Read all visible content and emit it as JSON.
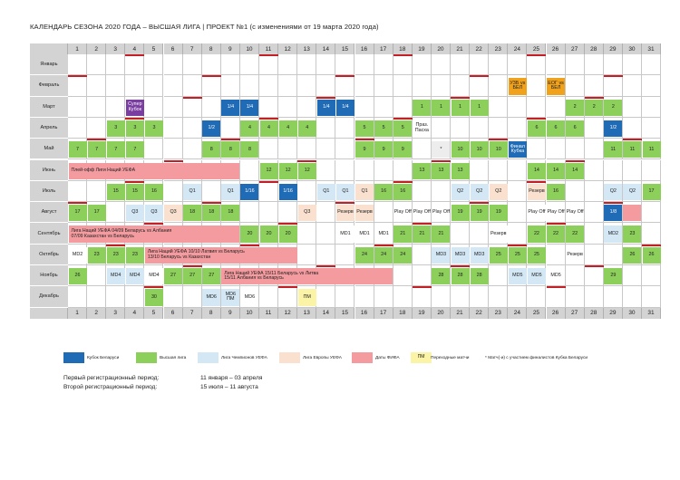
{
  "title": "КАЛЕНДАРЬ СЕЗОНА 2020 ГОДА – ВЫСШАЯ ЛИГА   | ПРОЕКТ №1 (с изменениями от 19 марта 2020 года)",
  "colors": {
    "green": "#8ccf5b",
    "blue": "#1f6bb5",
    "light_blue": "#d3e7f5",
    "peach": "#f9e0cf",
    "pink": "#f39b9f",
    "yellow": "#fbf3a6",
    "purple": "#7a3da0",
    "orange": "#f0a21d",
    "red": "#c41e26",
    "gray": "#d3d3d3"
  },
  "days": [
    "1",
    "2",
    "3",
    "4",
    "5",
    "6",
    "7",
    "8",
    "9",
    "10",
    "11",
    "12",
    "13",
    "14",
    "15",
    "16",
    "17",
    "18",
    "19",
    "20",
    "21",
    "22",
    "23",
    "24",
    "25",
    "26",
    "27",
    "28",
    "29",
    "30",
    "31"
  ],
  "months": [
    "Январь",
    "Февраль",
    "Март",
    "Апрель",
    "Май",
    "Июнь",
    "Июль",
    "Август",
    "Сентябрь",
    "Октябрь",
    "Ноябрь",
    "Декабрь"
  ],
  "red_marks": [
    [
      4,
      11,
      18,
      25
    ],
    [
      1,
      8,
      15,
      22,
      29
    ],
    [
      7,
      14,
      21,
      28
    ],
    [
      4,
      11,
      18,
      25
    ],
    [
      2,
      9,
      16,
      23,
      30
    ],
    [
      6,
      13,
      20,
      27
    ],
    [
      4,
      11,
      18,
      25
    ],
    [
      1,
      8,
      15,
      22,
      29
    ],
    [
      5,
      12,
      19,
      26
    ],
    [
      3,
      10,
      17,
      24,
      31
    ],
    [
      7,
      14,
      21,
      28
    ],
    [
      5,
      12,
      19,
      26
    ]
  ],
  "events": [
    {
      "m": 1,
      "d": 24,
      "c": "orange",
      "t": "УЗБ vs БЕЛ"
    },
    {
      "m": 1,
      "d": 26,
      "c": "orange",
      "t": "ЕОГ vs БЕЛ"
    },
    {
      "m": 2,
      "d": 4,
      "c": "purple",
      "t": "Супер Кубок"
    },
    {
      "m": 2,
      "d": 9,
      "c": "blue",
      "t": "1/4"
    },
    {
      "m": 2,
      "d": 10,
      "c": "blue",
      "t": "1/4"
    },
    {
      "m": 2,
      "d": 14,
      "c": "blue",
      "t": "1/4"
    },
    {
      "m": 2,
      "d": 15,
      "c": "blue",
      "t": "1/4"
    },
    {
      "m": 2,
      "d": 19,
      "c": "green",
      "t": "1"
    },
    {
      "m": 2,
      "d": 20,
      "c": "green",
      "t": "1"
    },
    {
      "m": 2,
      "d": 21,
      "c": "green",
      "t": "1"
    },
    {
      "m": 2,
      "d": 22,
      "c": "green",
      "t": "1"
    },
    {
      "m": 2,
      "d": 27,
      "c": "green",
      "t": "2"
    },
    {
      "m": 2,
      "d": 28,
      "c": "green",
      "t": "2"
    },
    {
      "m": 2,
      "d": 29,
      "c": "green",
      "t": "2"
    },
    {
      "m": 3,
      "d": 3,
      "c": "green",
      "t": "3"
    },
    {
      "m": 3,
      "d": 4,
      "c": "green",
      "t": "3"
    },
    {
      "m": 3,
      "d": 5,
      "c": "green",
      "t": "3"
    },
    {
      "m": 3,
      "d": 8,
      "c": "blue",
      "t": "1/2"
    },
    {
      "m": 3,
      "d": 10,
      "c": "green",
      "t": "4"
    },
    {
      "m": 3,
      "d": 11,
      "c": "green",
      "t": "4"
    },
    {
      "m": 3,
      "d": 12,
      "c": "green",
      "t": "4"
    },
    {
      "m": 3,
      "d": 13,
      "c": "green",
      "t": "4"
    },
    {
      "m": 3,
      "d": 16,
      "c": "green",
      "t": "5"
    },
    {
      "m": 3,
      "d": 17,
      "c": "green",
      "t": "5"
    },
    {
      "m": 3,
      "d": 18,
      "c": "green",
      "t": "5"
    },
    {
      "m": 3,
      "d": 19,
      "c": "white",
      "t": "Праз. Пасха"
    },
    {
      "m": 3,
      "d": 25,
      "c": "green",
      "t": "6"
    },
    {
      "m": 3,
      "d": 26,
      "c": "green",
      "t": "6"
    },
    {
      "m": 3,
      "d": 27,
      "c": "green",
      "t": "6"
    },
    {
      "m": 3,
      "d": 29,
      "c": "blue",
      "t": "1/2"
    },
    {
      "m": 4,
      "d": 1,
      "c": "green",
      "t": "7"
    },
    {
      "m": 4,
      "d": 2,
      "c": "green",
      "t": "7"
    },
    {
      "m": 4,
      "d": 3,
      "c": "green",
      "t": "7"
    },
    {
      "m": 4,
      "d": 4,
      "c": "green",
      "t": "7"
    },
    {
      "m": 4,
      "d": 8,
      "c": "green",
      "t": "8"
    },
    {
      "m": 4,
      "d": 9,
      "c": "green",
      "t": "8"
    },
    {
      "m": 4,
      "d": 10,
      "c": "green",
      "t": "8"
    },
    {
      "m": 4,
      "d": 16,
      "c": "green",
      "t": "9"
    },
    {
      "m": 4,
      "d": 17,
      "c": "green",
      "t": "9"
    },
    {
      "m": 4,
      "d": 18,
      "c": "green",
      "t": "9"
    },
    {
      "m": 4,
      "d": 20,
      "c": "gray",
      "t": "*"
    },
    {
      "m": 4,
      "d": 21,
      "c": "green",
      "t": "10"
    },
    {
      "m": 4,
      "d": 22,
      "c": "green",
      "t": "10"
    },
    {
      "m": 4,
      "d": 23,
      "c": "green",
      "t": "10"
    },
    {
      "m": 4,
      "d": 24,
      "c": "blue",
      "t": "Финал Кубка"
    },
    {
      "m": 4,
      "d": 29,
      "c": "green",
      "t": "11"
    },
    {
      "m": 4,
      "d": 30,
      "c": "green",
      "t": "11"
    },
    {
      "m": 4,
      "d": 31,
      "c": "green",
      "t": "11"
    },
    {
      "m": 5,
      "d": 1,
      "span": 9,
      "c": "pink",
      "t": "Плей-офф Лиги Наций УЕФА"
    },
    {
      "m": 5,
      "d": 11,
      "c": "green",
      "t": "12"
    },
    {
      "m": 5,
      "d": 12,
      "c": "green",
      "t": "12"
    },
    {
      "m": 5,
      "d": 13,
      "c": "green",
      "t": "12"
    },
    {
      "m": 5,
      "d": 19,
      "c": "green",
      "t": "13"
    },
    {
      "m": 5,
      "d": 20,
      "c": "green",
      "t": "13"
    },
    {
      "m": 5,
      "d": 21,
      "c": "green",
      "t": "13"
    },
    {
      "m": 5,
      "d": 25,
      "c": "green",
      "t": "14"
    },
    {
      "m": 5,
      "d": 26,
      "c": "green",
      "t": "14"
    },
    {
      "m": 5,
      "d": 27,
      "c": "green",
      "t": "14"
    },
    {
      "m": 6,
      "d": 3,
      "c": "green",
      "t": "15"
    },
    {
      "m": 6,
      "d": 4,
      "c": "green",
      "t": "15"
    },
    {
      "m": 6,
      "d": 5,
      "c": "green",
      "t": "16"
    },
    {
      "m": 6,
      "d": 7,
      "c": "lblue",
      "t": "Q1"
    },
    {
      "m": 6,
      "d": 9,
      "c": "lblue",
      "t": "Q1"
    },
    {
      "m": 6,
      "d": 10,
      "c": "blue",
      "t": "1/16"
    },
    {
      "m": 6,
      "d": 12,
      "c": "blue",
      "t": "1/16"
    },
    {
      "m": 6,
      "d": 14,
      "c": "lblue",
      "t": "Q1"
    },
    {
      "m": 6,
      "d": 15,
      "c": "lblue",
      "t": "Q1"
    },
    {
      "m": 6,
      "d": 16,
      "c": "peach",
      "t": "Q1"
    },
    {
      "m": 6,
      "d": 17,
      "c": "green",
      "t": "16"
    },
    {
      "m": 6,
      "d": 18,
      "c": "green",
      "t": "16"
    },
    {
      "m": 6,
      "d": 21,
      "c": "lblue",
      "t": "Q2"
    },
    {
      "m": 6,
      "d": 22,
      "c": "lblue",
      "t": "Q2"
    },
    {
      "m": 6,
      "d": 23,
      "c": "peach",
      "t": "Q2"
    },
    {
      "m": 6,
      "d": 25,
      "c": "peach",
      "t": "Резерв"
    },
    {
      "m": 6,
      "d": 26,
      "c": "green",
      "t": "16"
    },
    {
      "m": 6,
      "d": 29,
      "c": "lblue",
      "t": "Q2"
    },
    {
      "m": 6,
      "d": 30,
      "c": "lblue",
      "t": "Q2"
    },
    {
      "m": 6,
      "d": 31,
      "c": "green",
      "t": "17"
    },
    {
      "m": 7,
      "d": 1,
      "c": "green",
      "t": "17"
    },
    {
      "m": 7,
      "d": 2,
      "c": "green",
      "t": "17"
    },
    {
      "m": 7,
      "d": 4,
      "c": "lblue",
      "t": "Q3"
    },
    {
      "m": 7,
      "d": 5,
      "c": "lblue",
      "t": "Q3"
    },
    {
      "m": 7,
      "d": 6,
      "c": "peach",
      "t": "Q3"
    },
    {
      "m": 7,
      "d": 7,
      "c": "green",
      "t": "18"
    },
    {
      "m": 7,
      "d": 8,
      "c": "green",
      "t": "18"
    },
    {
      "m": 7,
      "d": 9,
      "c": "green",
      "t": "18"
    },
    {
      "m": 7,
      "d": 13,
      "c": "peach",
      "t": "Q3"
    },
    {
      "m": 7,
      "d": 15,
      "c": "peach",
      "t": "Резерв"
    },
    {
      "m": 7,
      "d": 16,
      "c": "peach",
      "t": "Резерв"
    },
    {
      "m": 7,
      "d": 18,
      "c": "white",
      "t": "Play Off"
    },
    {
      "m": 7,
      "d": 19,
      "c": "white",
      "t": "Play Off"
    },
    {
      "m": 7,
      "d": 20,
      "c": "white",
      "t": "Play Off"
    },
    {
      "m": 7,
      "d": 21,
      "c": "green",
      "t": "19"
    },
    {
      "m": 7,
      "d": 22,
      "c": "green",
      "t": "19"
    },
    {
      "m": 7,
      "d": 23,
      "c": "green",
      "t": "19"
    },
    {
      "m": 7,
      "d": 25,
      "c": "white",
      "t": "Play Off"
    },
    {
      "m": 7,
      "d": 26,
      "c": "white",
      "t": "Play Off"
    },
    {
      "m": 7,
      "d": 27,
      "c": "white",
      "t": "Play Off"
    },
    {
      "m": 7,
      "d": 29,
      "c": "blue",
      "t": "1/8"
    },
    {
      "m": 7,
      "d": 30,
      "c": "pink",
      "t": ""
    },
    {
      "m": 8,
      "d": 1,
      "span": 9,
      "c": "pink",
      "t": "Лига Наций УЕФА    04/09 Беларусь vs Албания\n07/09 Казахстан vs Беларусь"
    },
    {
      "m": 8,
      "d": 10,
      "c": "green",
      "t": "20"
    },
    {
      "m": 8,
      "d": 11,
      "c": "green",
      "t": "20"
    },
    {
      "m": 8,
      "d": 12,
      "c": "green",
      "t": "20"
    },
    {
      "m": 8,
      "d": 15,
      "c": "white",
      "t": "MD1"
    },
    {
      "m": 8,
      "d": 16,
      "c": "white",
      "t": "MD1"
    },
    {
      "m": 8,
      "d": 17,
      "c": "white",
      "t": "MD1"
    },
    {
      "m": 8,
      "d": 18,
      "c": "green",
      "t": "21"
    },
    {
      "m": 8,
      "d": 19,
      "c": "green",
      "t": "21"
    },
    {
      "m": 8,
      "d": 20,
      "c": "green",
      "t": "21"
    },
    {
      "m": 8,
      "d": 23,
      "c": "white",
      "t": "Резерв"
    },
    {
      "m": 8,
      "d": 25,
      "c": "green",
      "t": "22"
    },
    {
      "m": 8,
      "d": 26,
      "c": "green",
      "t": "22"
    },
    {
      "m": 8,
      "d": 27,
      "c": "green",
      "t": "22"
    },
    {
      "m": 8,
      "d": 29,
      "c": "lblue",
      "t": "MD2"
    },
    {
      "m": 8,
      "d": 30,
      "c": "green",
      "t": "23"
    },
    {
      "m": 9,
      "d": 1,
      "c": "white",
      "t": "MD2"
    },
    {
      "m": 9,
      "d": 2,
      "c": "green",
      "t": "23"
    },
    {
      "m": 9,
      "d": 3,
      "c": "green",
      "t": "23"
    },
    {
      "m": 9,
      "d": 4,
      "c": "green",
      "t": "23"
    },
    {
      "m": 9,
      "d": 5,
      "span": 8,
      "c": "pink",
      "t": "Лига Наций УЕФА    10/10 Латвия vs Беларусь\n13/10 Беларусь vs Казахстан"
    },
    {
      "m": 9,
      "d": 16,
      "c": "green",
      "t": "24"
    },
    {
      "m": 9,
      "d": 17,
      "c": "green",
      "t": "24"
    },
    {
      "m": 9,
      "d": 18,
      "c": "green",
      "t": "24"
    },
    {
      "m": 9,
      "d": 20,
      "c": "lblue",
      "t": "MD3"
    },
    {
      "m": 9,
      "d": 21,
      "c": "lblue",
      "t": "MD3"
    },
    {
      "m": 9,
      "d": 22,
      "c": "lblue",
      "t": "MD3"
    },
    {
      "m": 9,
      "d": 23,
      "c": "green",
      "t": "25"
    },
    {
      "m": 9,
      "d": 24,
      "c": "green",
      "t": "25"
    },
    {
      "m": 9,
      "d": 25,
      "c": "green",
      "t": "25"
    },
    {
      "m": 9,
      "d": 27,
      "c": "white",
      "t": "Резерв"
    },
    {
      "m": 9,
      "d": 30,
      "c": "green",
      "t": "26"
    },
    {
      "m": 9,
      "d": 31,
      "c": "green",
      "t": "26"
    },
    {
      "m": 10,
      "d": 1,
      "c": "green",
      "t": "26"
    },
    {
      "m": 10,
      "d": 3,
      "c": "lblue",
      "t": "MD4"
    },
    {
      "m": 10,
      "d": 4,
      "c": "lblue",
      "t": "MD4"
    },
    {
      "m": 10,
      "d": 5,
      "c": "white",
      "t": "MD4"
    },
    {
      "m": 10,
      "d": 6,
      "c": "green",
      "t": "27"
    },
    {
      "m": 10,
      "d": 7,
      "c": "green",
      "t": "27"
    },
    {
      "m": 10,
      "d": 8,
      "c": "green",
      "t": "27"
    },
    {
      "m": 10,
      "d": 9,
      "span": 9,
      "c": "pink",
      "t": "Лига Наций УЕФА      15/11 Беларусь vs Литва\n15/11 Албания vs Беларусь"
    },
    {
      "m": 10,
      "d": 20,
      "c": "green",
      "t": "28"
    },
    {
      "m": 10,
      "d": 21,
      "c": "green",
      "t": "28"
    },
    {
      "m": 10,
      "d": 22,
      "c": "green",
      "t": "28"
    },
    {
      "m": 10,
      "d": 24,
      "c": "lblue",
      "t": "MD5"
    },
    {
      "m": 10,
      "d": 25,
      "c": "lblue",
      "t": "MD5"
    },
    {
      "m": 10,
      "d": 26,
      "c": "white",
      "t": "MD5"
    },
    {
      "m": 10,
      "d": 29,
      "c": "green",
      "t": "29"
    },
    {
      "m": 11,
      "d": 5,
      "c": "green",
      "t": "30"
    },
    {
      "m": 11,
      "d": 8,
      "c": "lblue",
      "t": "MD6"
    },
    {
      "m": 11,
      "d": 9,
      "c": "lblue",
      "t": "MD6 ПМ"
    },
    {
      "m": 11,
      "d": 10,
      "c": "white",
      "t": "MD6"
    },
    {
      "m": 11,
      "d": 13,
      "c": "yellow",
      "t": "ПМ"
    }
  ],
  "legend": [
    {
      "c": "blue",
      "t": "Кубок Беларуси"
    },
    {
      "c": "green",
      "t": "Высшая лига"
    },
    {
      "c": "lblue",
      "t": "Лига Чемпионов УЕФА"
    },
    {
      "c": "peach",
      "t": "Лига Европы УЕФА"
    },
    {
      "c": "pink",
      "t": "Даты ФИФА"
    },
    {
      "c": "yellow",
      "t": "ПМ"
    },
    {
      "c": "none",
      "t": "Переходные матчи"
    },
    {
      "c": "none",
      "t": "*        Матч(-и) с участием финалистов Кубка Беларуси"
    }
  ],
  "registration": [
    {
      "label": "Первый регистрационный период:",
      "value": "11 января – 03 апреля"
    },
    {
      "label": "Второй регистрационный период:",
      "value": "15 июля – 11 августа"
    }
  ]
}
